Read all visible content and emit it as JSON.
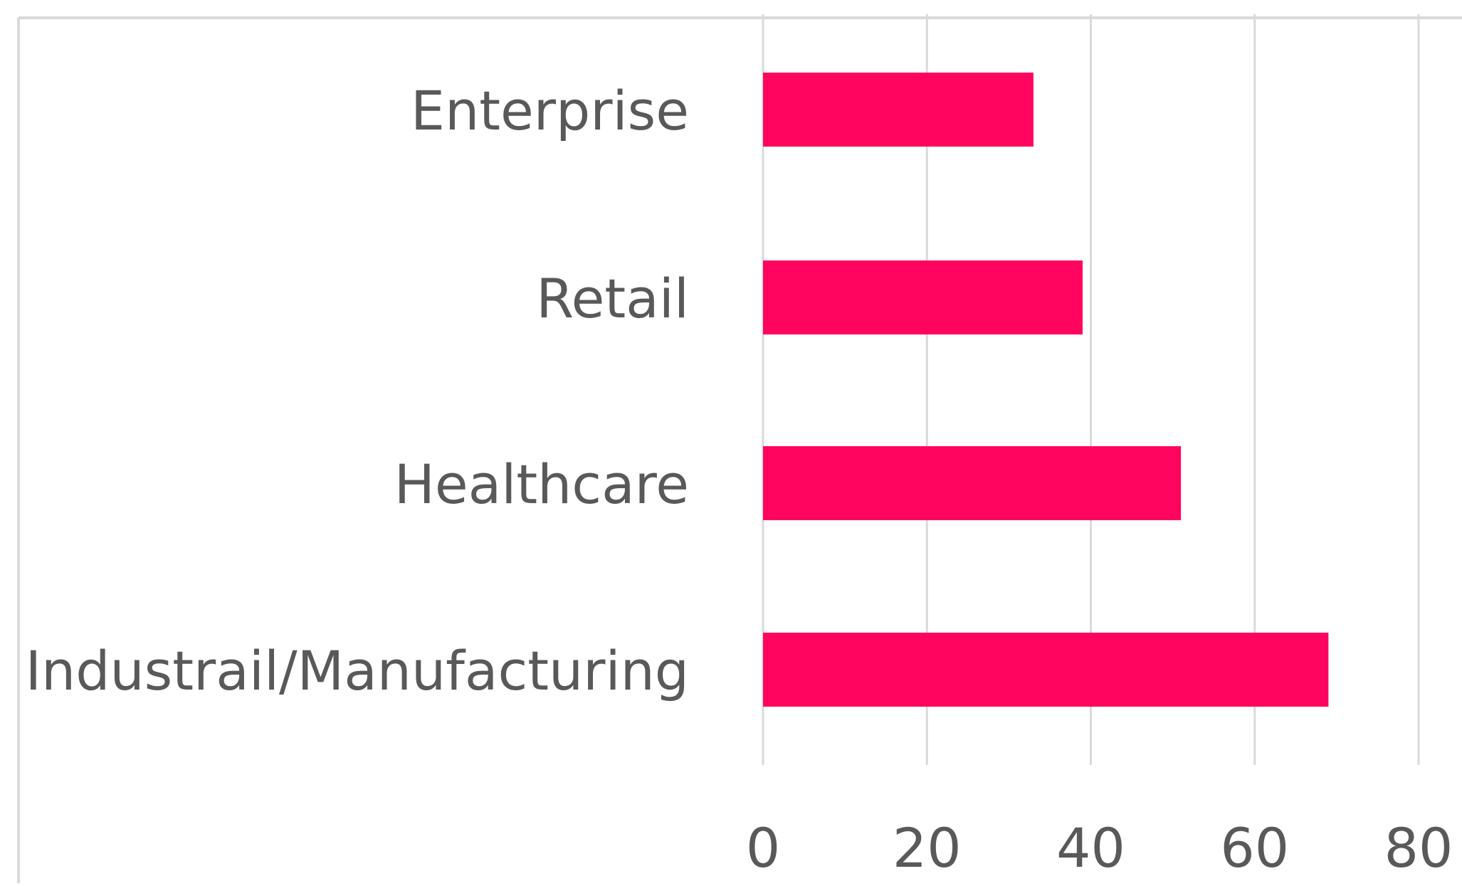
{
  "chart_data": {
    "type": "bar",
    "orientation": "horizontal",
    "title": "",
    "xlabel": "",
    "ylabel": "",
    "categories": [
      "Enterprise",
      "Retail",
      "Healthcare",
      "Industrail/Manufacturing"
    ],
    "values": [
      33,
      39,
      51,
      69
    ],
    "xlim": [
      0,
      80
    ],
    "xticks": [
      "0",
      "20",
      "40",
      "60",
      "80"
    ],
    "grid": "vertical",
    "legend": "none",
    "colors": {
      "bar": "#FF0560",
      "grid": "#D9D9D9",
      "text": "#595959",
      "border": "#D9D9D9"
    }
  }
}
